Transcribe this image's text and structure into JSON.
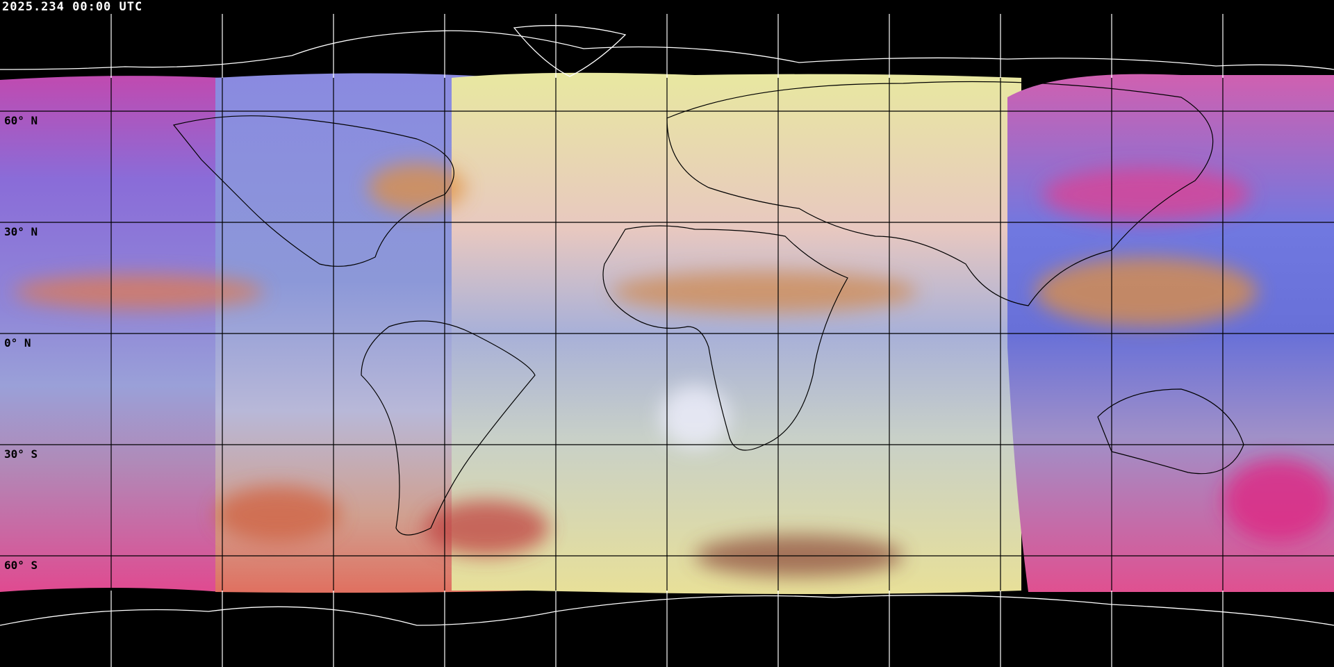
{
  "title": "2025.234 00:00 UTC",
  "projection": "equirectangular",
  "grid": {
    "lon_step_deg": 30,
    "lat_step_deg": 30,
    "visible": true
  },
  "lat_labels": [
    "60° N",
    "30° N",
    "0° N",
    "30° S",
    "60° S"
  ],
  "colors": {
    "background": "#000000",
    "grid_on_image": "#000000",
    "grid_on_background": "#ffffff",
    "coastline_on_image": "#000000",
    "coastline_on_background": "#ffffff"
  }
}
